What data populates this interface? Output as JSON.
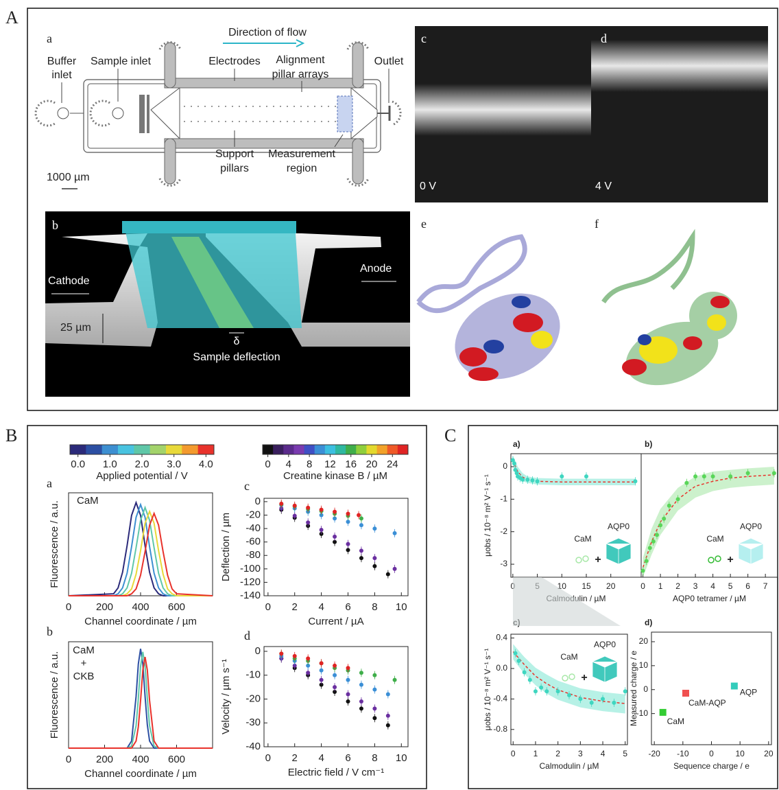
{
  "panel_labels": [
    "A",
    "B",
    "C"
  ],
  "schematic": {
    "label": "a",
    "direction": "Direction of flow",
    "buffer_inlet": [
      "Buffer",
      "inlet"
    ],
    "sample_inlet": "Sample inlet",
    "electrodes": "Electrodes",
    "alignment": [
      "Alignment",
      "pillar arrays"
    ],
    "outlet": "Outlet",
    "support": [
      "Support",
      "pillars"
    ],
    "measurement": [
      "Measurement",
      "region"
    ],
    "scale": "1000 µm"
  },
  "micrographs": [
    {
      "label": "c",
      "caption": "0 V"
    },
    {
      "label": "d",
      "caption": "4 V"
    }
  ],
  "render": {
    "label": "b",
    "cathode": "Cathode",
    "anode": "Anode",
    "height": "25 µm",
    "delta": "δ",
    "deflection": "Sample deflection"
  },
  "structures": [
    "e",
    "f"
  ],
  "colorbars": [
    {
      "label": "Applied potential / V",
      "lim": [
        -0.25,
        4.25
      ],
      "colors": [
        "#2b2a7a",
        "#2c4fa3",
        "#3d8fd1",
        "#49c3e0",
        "#5fc7a8",
        "#a3d36b",
        "#e8d93a",
        "#f39a2e",
        "#e8322b"
      ],
      "ticks": [
        {
          "value": 0,
          "label": "0.0"
        },
        {
          "value": 1,
          "label": "1.0"
        },
        {
          "value": 2,
          "label": "2.0"
        },
        {
          "value": 3,
          "label": "3.0"
        },
        {
          "value": 4,
          "label": "4.0"
        }
      ]
    },
    {
      "label": "Creatine kinase B / µM",
      "lim": [
        -1,
        27
      ],
      "colors": [
        "#111111",
        "#3a1f5e",
        "#5b2b8c",
        "#7a3bb0",
        "#3f4fc4",
        "#3b8fd6",
        "#3cbfe0",
        "#2fb8a0",
        "#3fae4a",
        "#8fcf3c",
        "#e3d92e",
        "#f2a22a",
        "#ef5a28",
        "#e02424"
      ],
      "ticks": [
        0,
        4,
        8,
        12,
        16,
        20,
        24
      ]
    }
  ],
  "chart_data": [
    {
      "type": "line",
      "label": "a",
      "annotation": [
        "CaM"
      ],
      "xlabel": "Channel coordinate / µm",
      "ylabel": "Fluorescence / a.u.",
      "x": [
        0,
        250,
        275,
        300,
        325,
        350,
        375,
        400,
        425,
        450,
        475,
        500,
        525,
        550,
        575,
        600,
        800
      ],
      "xlim": [
        0,
        800
      ],
      "xticks": [
        0,
        200,
        400,
        600
      ],
      "ylim": [
        0,
        1.05
      ],
      "series": [
        {
          "color": "#2b2a7a",
          "values": [
            0,
            0.02,
            0.08,
            0.24,
            0.51,
            0.82,
            0.95,
            0.82,
            0.51,
            0.24,
            0.08,
            0.02,
            0,
            0,
            0,
            0,
            0
          ]
        },
        {
          "color": "#3d8fd1",
          "values": [
            0,
            0,
            0.02,
            0.08,
            0.23,
            0.5,
            0.8,
            0.93,
            0.8,
            0.5,
            0.23,
            0.08,
            0.02,
            0,
            0,
            0,
            0
          ]
        },
        {
          "color": "#5fc7a8",
          "values": [
            0,
            0,
            0,
            0.02,
            0.08,
            0.23,
            0.49,
            0.77,
            0.9,
            0.77,
            0.49,
            0.23,
            0.08,
            0.02,
            0,
            0,
            0
          ]
        },
        {
          "color": "#e8d93a",
          "values": [
            0,
            0,
            0,
            0,
            0.02,
            0.07,
            0.22,
            0.46,
            0.74,
            0.86,
            0.74,
            0.46,
            0.22,
            0.07,
            0.02,
            0,
            0
          ]
        },
        {
          "color": "#e8322b",
          "values": [
            0,
            0,
            0,
            0,
            0,
            0.02,
            0.07,
            0.21,
            0.45,
            0.72,
            0.84,
            0.72,
            0.45,
            0.21,
            0.07,
            0.02,
            0
          ]
        }
      ]
    },
    {
      "type": "line",
      "label": "b",
      "annotation": [
        "CaM",
        "+",
        "CKB"
      ],
      "xlabel": "Channel coordinate / µm",
      "ylabel": "Fluorescence / a.u.",
      "x": [
        0,
        325,
        350,
        375,
        387.5,
        400,
        412.5,
        425,
        437.5,
        450,
        475,
        500,
        800
      ],
      "xlim": [
        0,
        800
      ],
      "xticks": [
        0,
        200,
        400,
        600
      ],
      "ylim": [
        0,
        1.05
      ],
      "series": [
        {
          "color": "#2c4fa3",
          "values": [
            0,
            0,
            0.07,
            0.51,
            0.83,
            0.98,
            0.83,
            0.51,
            0.23,
            0.07,
            0,
            0,
            0
          ]
        },
        {
          "color": "#5fc7a8",
          "values": [
            0,
            0,
            0.02,
            0.22,
            0.49,
            0.81,
            0.95,
            0.81,
            0.49,
            0.22,
            0.02,
            0,
            0
          ]
        },
        {
          "color": "#e8322b",
          "values": [
            0,
            0,
            0,
            0.07,
            0.21,
            0.47,
            0.77,
            0.9,
            0.77,
            0.47,
            0.07,
            0,
            0
          ]
        }
      ]
    },
    {
      "type": "scatter",
      "label": "c",
      "xlabel": "Current / µA",
      "ylabel": "Deflection / µm",
      "xlim": [
        -0.3,
        10.5
      ],
      "xticks": [
        0,
        2,
        4,
        6,
        8,
        10
      ],
      "ylim": [
        -140,
        5
      ],
      "yticks": [
        0,
        -20,
        -40,
        -60,
        -80,
        -100,
        -120,
        -140
      ],
      "series": [
        {
          "color": "#111111",
          "x": [
            1,
            2,
            3,
            4,
            5,
            6,
            7,
            8,
            9
          ],
          "values": [
            -12,
            -24,
            -36,
            -48,
            -60,
            -72,
            -84,
            -96,
            -108
          ]
        },
        {
          "color": "#6a2fa0",
          "x": [
            1,
            2,
            3,
            4,
            5,
            6,
            7,
            8,
            9.5
          ],
          "values": [
            -10,
            -21,
            -31,
            -42,
            -52,
            -63,
            -73,
            -84,
            -100
          ]
        },
        {
          "color": "#3b8fd6",
          "x": [
            1,
            2,
            3,
            4,
            5,
            6,
            7,
            8,
            9.5
          ],
          "values": [
            -5,
            -10,
            -15,
            -20,
            -25,
            -30,
            -35,
            -40,
            -47
          ]
        },
        {
          "color": "#3fae4a",
          "x": [
            1,
            2,
            3,
            4,
            5,
            6,
            7
          ],
          "values": [
            -4,
            -7,
            -11,
            -14,
            -18,
            -21,
            -25
          ]
        },
        {
          "color": "#e02424",
          "x": [
            1,
            2,
            3,
            4,
            5,
            6,
            6.8
          ],
          "values": [
            -3,
            -6,
            -9,
            -12,
            -15,
            -18,
            -20
          ]
        }
      ]
    },
    {
      "type": "scatter",
      "label": "d",
      "xlabel": "Electric field / V cm⁻¹",
      "ylabel": "Velocity / µm s⁻¹",
      "xlim": [
        -0.3,
        10.5
      ],
      "xticks": [
        0,
        2,
        4,
        6,
        8,
        10
      ],
      "ylim": [
        -40,
        2
      ],
      "yticks": [
        0,
        -10,
        -20,
        -30,
        -40
      ],
      "series": [
        {
          "color": "#111111",
          "x": [
            1,
            2,
            3,
            4,
            5,
            6,
            7,
            8,
            9
          ],
          "values": [
            -3,
            -7,
            -10,
            -14,
            -17,
            -21,
            -24,
            -28,
            -31
          ]
        },
        {
          "color": "#6a2fa0",
          "x": [
            1,
            2,
            3,
            4,
            5,
            6,
            7,
            8,
            9
          ],
          "values": [
            -3,
            -6,
            -9,
            -12,
            -15,
            -18,
            -21,
            -24,
            -27
          ]
        },
        {
          "color": "#3b8fd6",
          "x": [
            1,
            2,
            3,
            4,
            5,
            6,
            7,
            8,
            9
          ],
          "values": [
            -2,
            -4,
            -6,
            -8,
            -10,
            -12,
            -14,
            -16,
            -18
          ]
        },
        {
          "color": "#3fae4a",
          "x": [
            1,
            2,
            3,
            4,
            5,
            6,
            7,
            8,
            9.5
          ],
          "values": [
            -1,
            -3,
            -4,
            -5,
            -7,
            -8,
            -9,
            -10,
            -12
          ]
        },
        {
          "color": "#e02424",
          "x": [
            1,
            2,
            3,
            4,
            5,
            6
          ],
          "values": [
            -1,
            -2,
            -3,
            -5,
            -6,
            -7
          ]
        }
      ]
    },
    {
      "type": "scatter",
      "label": "a)",
      "xlabel": "Calmodulin / µM",
      "ylabel": "μobs / 10⁻⁸ m² V⁻¹ s⁻¹",
      "xlim": [
        -0.4,
        26.2
      ],
      "xticks": [
        0,
        5,
        10,
        15,
        20
      ],
      "ylim": [
        -3.4,
        0.4
      ],
      "yticks": [
        0,
        -1,
        -2,
        -3
      ],
      "inset": [
        {
          "text": "CaM",
          "color": "#a8e8a8"
        },
        {
          "text": "+",
          "color": "#111111"
        },
        {
          "text": "AQP0",
          "color": "#20c0b0"
        }
      ],
      "series": [
        {
          "color": "#5fe0c8",
          "line_style": "dashed",
          "line_color": "#e8342c",
          "x": [
            0,
            1,
            2,
            3,
            5,
            10,
            25
          ],
          "values": [
            0.2,
            -0.15,
            -0.32,
            -0.4,
            -0.45,
            -0.47,
            -0.47
          ],
          "lower": [
            0.05,
            -0.3,
            -0.45,
            -0.5,
            -0.55,
            -0.57,
            -0.57
          ],
          "upper": [
            0.35,
            0,
            -0.2,
            -0.3,
            -0.35,
            -0.37,
            -0.37
          ]
        },
        {
          "color": "#3fd6c0",
          "x": [
            0,
            0.3,
            0.5,
            0.8,
            1,
            1.5,
            2,
            3,
            4,
            5,
            10,
            15,
            25
          ],
          "values": [
            0.2,
            0.1,
            -0.1,
            -0.2,
            -0.3,
            -0.35,
            -0.4,
            -0.4,
            -0.42,
            -0.45,
            -0.3,
            -0.3,
            -0.45
          ]
        }
      ]
    },
    {
      "type": "scatter",
      "label": "b)",
      "xlabel": "AQP0 tetramer / µM",
      "xlim": [
        -0.1,
        7.7
      ],
      "xticks": [
        0,
        1,
        2,
        3,
        4,
        5,
        6,
        7
      ],
      "ylim": [
        -3.4,
        0.4
      ],
      "inset": [
        {
          "text": "CaM",
          "color": "#33bb33"
        },
        {
          "text": "+",
          "color": "#111111"
        },
        {
          "text": "AQP0",
          "color": "#a8ecec"
        }
      ],
      "series": [
        {
          "color": "#8fe08f",
          "line_style": "dashed",
          "line_color": "#e8342c",
          "x": [
            0,
            0.5,
            1,
            2,
            3,
            4,
            5,
            6,
            7.5
          ],
          "values": [
            -3.1,
            -2.3,
            -1.7,
            -1,
            -0.6,
            -0.45,
            -0.35,
            -0.3,
            -0.25
          ],
          "lower": [
            -3.4,
            -2.7,
            -2.1,
            -1.35,
            -0.95,
            -0.75,
            -0.65,
            -0.6,
            -0.55
          ],
          "upper": [
            -2.8,
            -1.9,
            -1.3,
            -0.65,
            -0.3,
            -0.15,
            -0.1,
            -0.05,
            0
          ]
        },
        {
          "color": "#59d659",
          "x": [
            0,
            0.2,
            0.4,
            0.6,
            0.8,
            1,
            1.2,
            1.5,
            2,
            2.5,
            3,
            3.5,
            4,
            5,
            6,
            7.5
          ],
          "values": [
            -3.2,
            -2.9,
            -2.5,
            -2.3,
            -2.1,
            -1.8,
            -1.6,
            -1.2,
            -1,
            -0.5,
            -0.3,
            -0.3,
            -0.3,
            -0.3,
            -0.2,
            -0.2
          ]
        }
      ]
    },
    {
      "type": "scatter",
      "label": "c)",
      "xlabel": "Calmodulin / µM",
      "ylabel": "μobs / 10⁻⁸ m² V⁻¹ s⁻¹",
      "xlim": [
        -0.1,
        5.1
      ],
      "xticks": [
        0,
        1,
        2,
        3,
        4,
        5
      ],
      "ylim": [
        -1.0,
        0.45
      ],
      "yticks": [
        0.4,
        {
          "value": 0,
          "label": "0.0"
        },
        -0.4,
        -0.8
      ],
      "inset": [
        {
          "text": "CaM",
          "color": "#a8e8a8"
        },
        {
          "text": "+",
          "color": "#111111"
        },
        {
          "text": "AQP0",
          "color": "#20c0b0"
        }
      ],
      "series": [
        {
          "color": "#5fe0c8",
          "line_style": "dashed",
          "line_color": "#e8342c",
          "x": [
            0,
            0.5,
            1,
            1.5,
            2,
            3,
            4,
            5
          ],
          "values": [
            0.22,
            0.05,
            -0.1,
            -0.2,
            -0.28,
            -0.38,
            -0.43,
            -0.46
          ],
          "lower": [
            0.12,
            -0.07,
            -0.22,
            -0.33,
            -0.41,
            -0.51,
            -0.56,
            -0.59
          ],
          "upper": [
            0.32,
            0.15,
            0.01,
            -0.08,
            -0.16,
            -0.26,
            -0.31,
            -0.34
          ]
        },
        {
          "color": "#3fd6c0",
          "x": [
            0.1,
            0.25,
            0.5,
            0.75,
            1,
            1.25,
            1.5,
            2,
            2.5,
            3,
            3.5,
            4,
            4.5,
            5
          ],
          "values": [
            0.2,
            0.1,
            -0.05,
            -0.15,
            -0.3,
            -0.25,
            -0.3,
            -0.3,
            -0.35,
            -0.4,
            -0.45,
            -0.4,
            -0.45,
            -0.3
          ]
        }
      ]
    },
    {
      "type": "scatter",
      "label": "d)",
      "xlabel": "Sequence charge / e",
      "ylabel": "Measured charge / e",
      "xlim": [
        -21,
        21
      ],
      "xticks": [
        -20,
        -10,
        0,
        10,
        20
      ],
      "ylim": [
        -23,
        24
      ],
      "yticks": [
        20,
        10,
        0,
        -10
      ],
      "series": [
        {
          "name": "CaM",
          "color": "#33cc33",
          "marker": "square",
          "x": [
            -17
          ],
          "values": [
            -9.5
          ]
        },
        {
          "name": "CaM-AQP",
          "color": "#f05050",
          "marker": "square",
          "x": [
            -9
          ],
          "values": [
            -1.5
          ]
        },
        {
          "name": "AQP",
          "color": "#33ccbb",
          "marker": "square",
          "x": [
            8
          ],
          "values": [
            1.5
          ]
        }
      ]
    }
  ]
}
